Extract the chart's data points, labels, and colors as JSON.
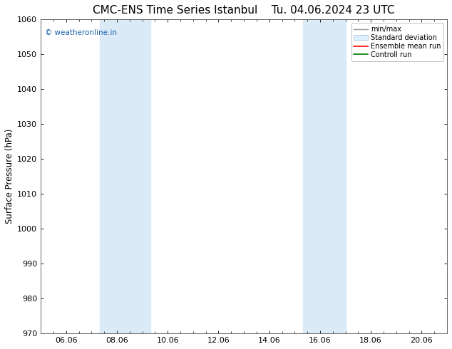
{
  "title": "CMC-ENS Time Series Istanbul",
  "title2": "Tu. 04.06.2024 23 UTC",
  "ylabel": "Surface Pressure (hPa)",
  "ylim": [
    970,
    1060
  ],
  "yticks": [
    970,
    980,
    990,
    1000,
    1010,
    1020,
    1030,
    1040,
    1050,
    1060
  ],
  "xtick_labels": [
    "06.06",
    "08.06",
    "10.06",
    "12.06",
    "14.06",
    "16.06",
    "18.06",
    "20.06"
  ],
  "xtick_positions": [
    2,
    4,
    6,
    8,
    10,
    12,
    14,
    16
  ],
  "xlim": [
    1,
    17
  ],
  "shaded_bands": [
    {
      "x_start": 3.33,
      "x_end": 5.33
    },
    {
      "x_start": 11.33,
      "x_end": 13.0
    }
  ],
  "shaded_color": "#daeaf7",
  "watermark_text": "© weatheronline.in",
  "watermark_color": "#1a5faa",
  "legend_labels": [
    "min/max",
    "Standard deviation",
    "Ensemble mean run",
    "Controll run"
  ],
  "legend_line_colors": [
    "#999999",
    "#bbccdd",
    "#ff0000",
    "#007700"
  ],
  "background_color": "#ffffff",
  "title_fontsize": 11,
  "tick_fontsize": 8,
  "ylabel_fontsize": 8.5
}
